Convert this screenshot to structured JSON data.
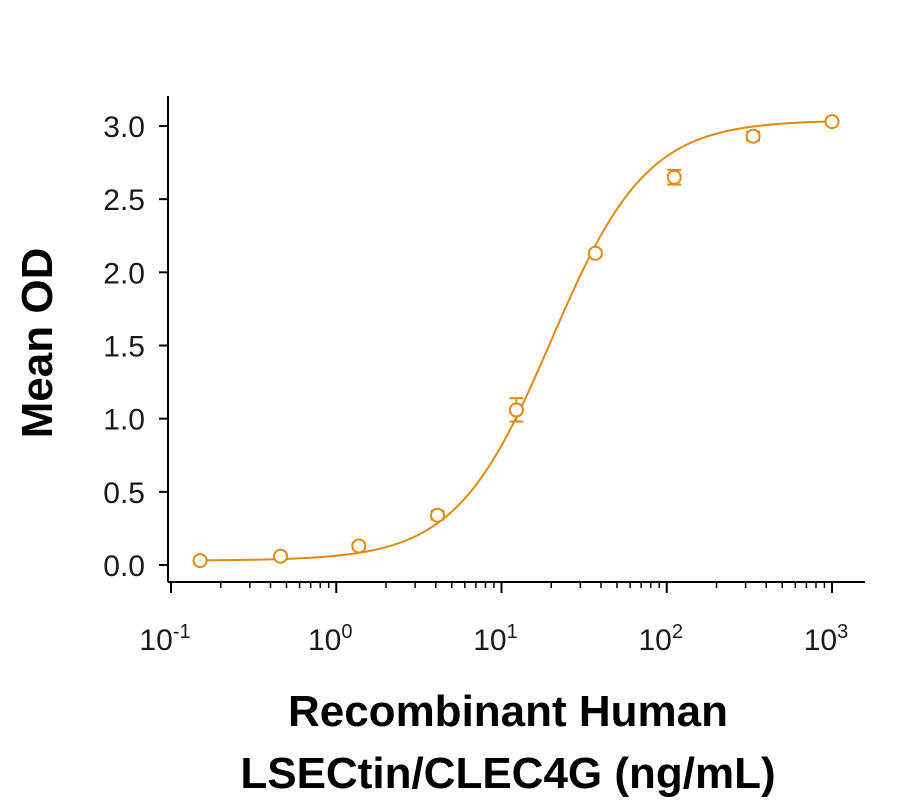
{
  "chart_data": {
    "type": "scatter",
    "title": "",
    "xlabel_lines": [
      "Recombinant Human",
      "LSECtin/CLEC4G (ng/mL)"
    ],
    "ylabel": "Mean OD",
    "x_scale": "log10",
    "xlim": [
      0.1,
      1000
    ],
    "ylim": [
      0,
      3.0
    ],
    "x_ticks": [
      {
        "base": "10",
        "exp": "-1",
        "value": 0.1
      },
      {
        "base": "10",
        "exp": "0",
        "value": 1
      },
      {
        "base": "10",
        "exp": "1",
        "value": 10
      },
      {
        "base": "10",
        "exp": "2",
        "value": 100
      },
      {
        "base": "10",
        "exp": "3",
        "value": 1000
      }
    ],
    "y_ticks": [
      "0.0",
      "0.5",
      "1.0",
      "1.5",
      "2.0",
      "2.5",
      "3.0"
    ],
    "y_tick_values": [
      0,
      0.5,
      1.0,
      1.5,
      2.0,
      2.5,
      3.0
    ],
    "grid": false,
    "legend": "none",
    "series": [
      {
        "color": "#E08A12",
        "marker": "open-circle",
        "x": [
          0.15,
          0.46,
          1.37,
          4.1,
          12.3,
          37,
          111,
          333,
          1000
        ],
        "y": [
          0.03,
          0.06,
          0.13,
          0.34,
          1.06,
          2.13,
          2.65,
          2.93,
          3.03
        ],
        "y_error": [
          0.01,
          0.01,
          0.02,
          0.03,
          0.08,
          0.02,
          0.05,
          0.03,
          0.01
        ]
      }
    ],
    "fit": {
      "model": "4PL",
      "bottom": 0.03,
      "top": 3.04,
      "ec50": 20,
      "hill": 1.5
    }
  }
}
